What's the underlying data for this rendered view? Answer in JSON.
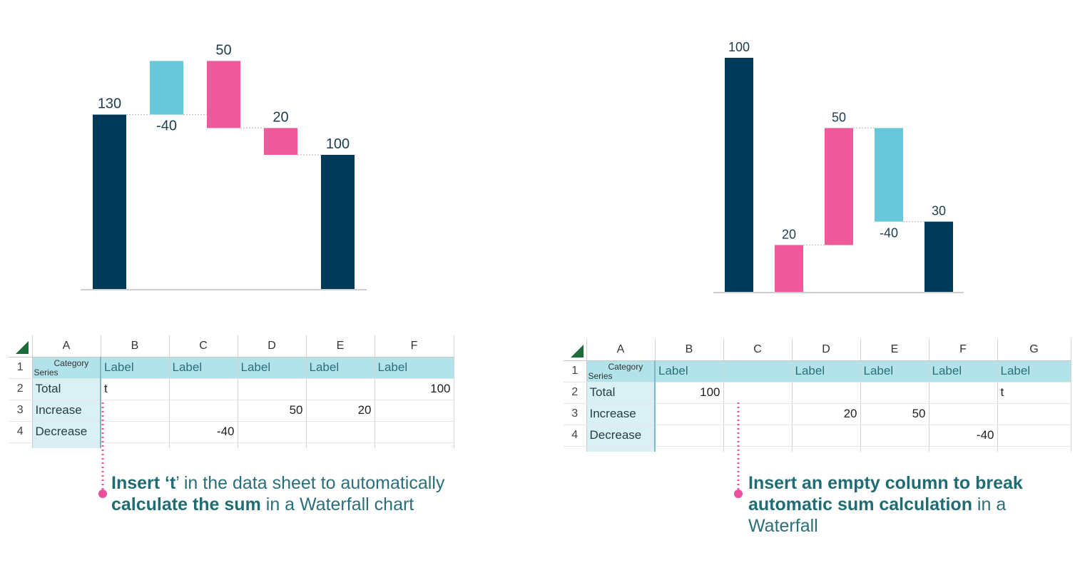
{
  "chart_data": [
    {
      "type": "bar",
      "subtype": "waterfall",
      "data_labels": [
        "130",
        "-40",
        "50",
        "20",
        "100"
      ],
      "bars": [
        {
          "role": "total",
          "start": 0,
          "end": 130,
          "label": "130",
          "color": "#003857"
        },
        {
          "role": "decrease",
          "start": 130,
          "end": 170,
          "label": "-40",
          "color": "#68c8da"
        },
        {
          "role": "increase",
          "start": 120,
          "end": 170,
          "label": "50",
          "color": "#ef5a9b"
        },
        {
          "role": "increase",
          "start": 100,
          "end": 120,
          "label": "20",
          "color": "#ef5a9b"
        },
        {
          "role": "total",
          "start": 0,
          "end": 100,
          "label": "100",
          "color": "#003857"
        }
      ]
    },
    {
      "type": "bar",
      "subtype": "waterfall",
      "data_labels": [
        "100",
        "20",
        "50",
        "-40",
        "30"
      ],
      "bars": [
        {
          "role": "total",
          "start": 0,
          "end": 100,
          "label": "100",
          "color": "#003857"
        },
        {
          "role": "increase",
          "start": 0,
          "end": 20,
          "label": "20",
          "color": "#ef5a9b"
        },
        {
          "role": "increase",
          "start": 20,
          "end": 70,
          "label": "50",
          "color": "#ef5a9b"
        },
        {
          "role": "decrease",
          "start": 30,
          "end": 70,
          "label": "-40",
          "color": "#68c8da"
        },
        {
          "role": "total",
          "start": 0,
          "end": 30,
          "label": "30",
          "color": "#003857"
        }
      ]
    }
  ],
  "sheet_left": {
    "columns": [
      "A",
      "B",
      "C",
      "D",
      "E",
      "F"
    ],
    "header_category": "Category",
    "header_series": "Series",
    "rows": [
      {
        "num": "1",
        "cells": [
          "",
          "Label",
          "Label",
          "Label",
          "Label",
          "Label"
        ]
      },
      {
        "num": "2",
        "cells": [
          "Total",
          "t",
          "",
          "",
          "",
          "100"
        ]
      },
      {
        "num": "3",
        "cells": [
          "Increase",
          "",
          "",
          "50",
          "20",
          ""
        ]
      },
      {
        "num": "4",
        "cells": [
          "Decrease",
          "",
          "-40",
          "",
          "",
          ""
        ]
      }
    ]
  },
  "sheet_right": {
    "columns": [
      "A",
      "B",
      "C",
      "D",
      "E",
      "F",
      "G"
    ],
    "header_category": "Category",
    "header_series": "Series",
    "rows": [
      {
        "num": "1",
        "cells": [
          "",
          "Label",
          "",
          "Label",
          "Label",
          "Label",
          "Label"
        ]
      },
      {
        "num": "2",
        "cells": [
          "Total",
          "100",
          "",
          "",
          "",
          "",
          "t"
        ]
      },
      {
        "num": "3",
        "cells": [
          "Increase",
          "",
          "",
          "20",
          "50",
          "",
          ""
        ]
      },
      {
        "num": "4",
        "cells": [
          "Decrease",
          "",
          "",
          "",
          "",
          "-40",
          ""
        ]
      }
    ]
  },
  "caption_left": {
    "p1": "Insert ‘t",
    "p2": "’ in the data sheet to automatically ",
    "p3": "calculate the sum",
    "p4": " in a Waterfall chart"
  },
  "caption_right": {
    "p1": "Insert an empty column to break automatic sum calculation",
    "p2": " in a Waterfall"
  },
  "colors": {
    "total": "#003857",
    "increase": "#ef5a9b",
    "decrease": "#68c8da",
    "accent": "#ec4f9c",
    "caption": "#2a6f79"
  }
}
